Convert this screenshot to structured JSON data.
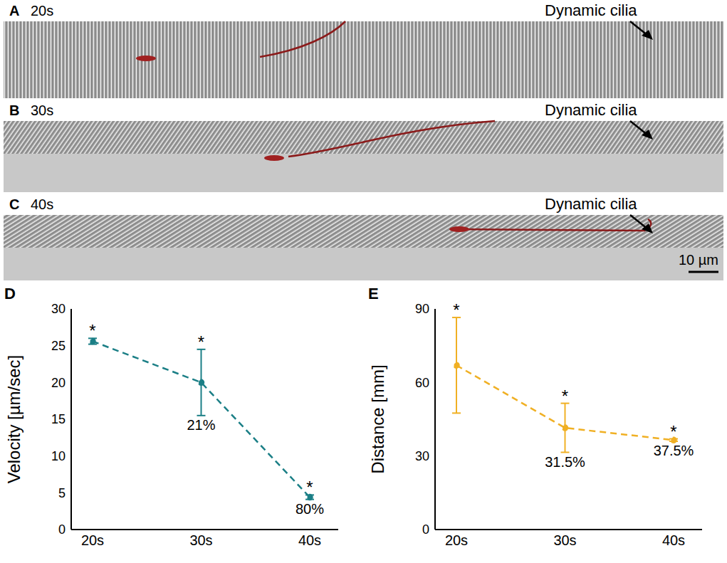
{
  "images": [
    {
      "panel": "A",
      "time": "20s",
      "label": "Dynamic cilia"
    },
    {
      "panel": "B",
      "time": "30s",
      "label": "Dynamic cilia"
    },
    {
      "panel": "C",
      "time": "40s",
      "label": "Dynamic cilia"
    }
  ],
  "scale_bar": "10 µm",
  "chart_data": [
    {
      "type": "line",
      "panel": "D",
      "y_label": "Velocity [µm/sec]",
      "categories": [
        "20s",
        "30s",
        "40s"
      ],
      "values": [
        25.6,
        20,
        4.4
      ],
      "errors": [
        0.4,
        4.5,
        0.3
      ],
      "labels_above": [
        "*",
        "*",
        "*"
      ],
      "labels_below": [
        null,
        "21%",
        "80%"
      ],
      "color": "#1b7f86",
      "line_style": "dashed",
      "marker": "circle",
      "ylim": [
        0,
        30
      ],
      "yticks": [
        0,
        5,
        10,
        15,
        20,
        25,
        30
      ],
      "grid": false
    },
    {
      "type": "line",
      "panel": "E",
      "y_label": "Distance [mm]",
      "categories": [
        "20s",
        "30s",
        "40s"
      ],
      "values": [
        67,
        41.5,
        36.5
      ],
      "errors": [
        19.5,
        10,
        0.5
      ],
      "labels_above": [
        "*",
        "*",
        "*"
      ],
      "labels_below": [
        null,
        "31.5%",
        "37.5%"
      ],
      "color": "#f0b024",
      "line_style": "dashed",
      "marker": "circle",
      "ylim": [
        0,
        90
      ],
      "yticks": [
        0,
        30,
        60,
        90
      ],
      "grid": false
    }
  ]
}
